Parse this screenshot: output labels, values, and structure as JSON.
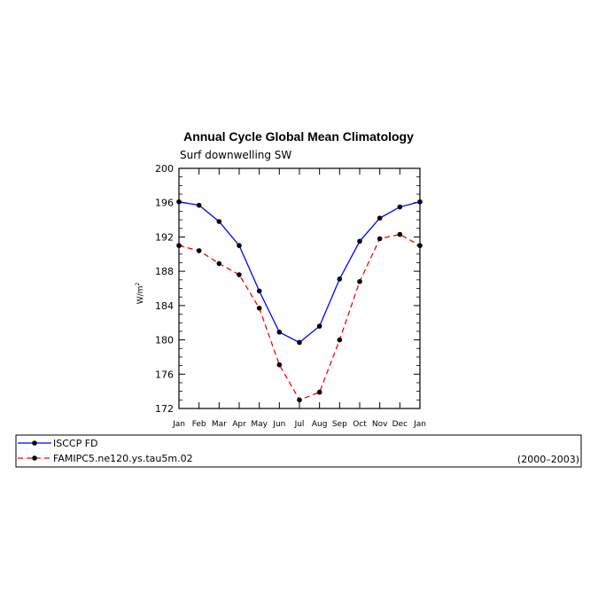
{
  "chart_data": {
    "type": "line",
    "title": "Annual Cycle Global Mean Climatology",
    "subtitle": "Surf downwelling SW",
    "ylabel": "W/m",
    "ylabel_sup": "2",
    "ylim": [
      172,
      200
    ],
    "yticks": [
      "172",
      "176",
      "180",
      "184",
      "188",
      "192",
      "196",
      "200"
    ],
    "categories": [
      "Jan",
      "Feb",
      "Mar",
      "Apr",
      "May",
      "Jun",
      "Jul",
      "Aug",
      "Sep",
      "Oct",
      "Nov",
      "Dec",
      "Jan"
    ],
    "series": [
      {
        "name": "ISCCP FD",
        "color": "#0000ff",
        "dash": "solid",
        "values": [
          196.1,
          195.7,
          193.8,
          191.0,
          185.7,
          180.9,
          179.7,
          181.6,
          187.1,
          191.5,
          194.2,
          195.5,
          196.1
        ]
      },
      {
        "name": "FAMIPC5.ne120.ys.tau5m.02",
        "color": "#ff0000",
        "dash": "dashed",
        "values": [
          191.0,
          190.4,
          188.9,
          187.6,
          183.7,
          177.1,
          173.0,
          173.9,
          180.0,
          186.8,
          191.8,
          192.3,
          191.0
        ]
      }
    ],
    "legend": {
      "placement": "below",
      "period": "(2000–2003)"
    },
    "grid": false
  }
}
